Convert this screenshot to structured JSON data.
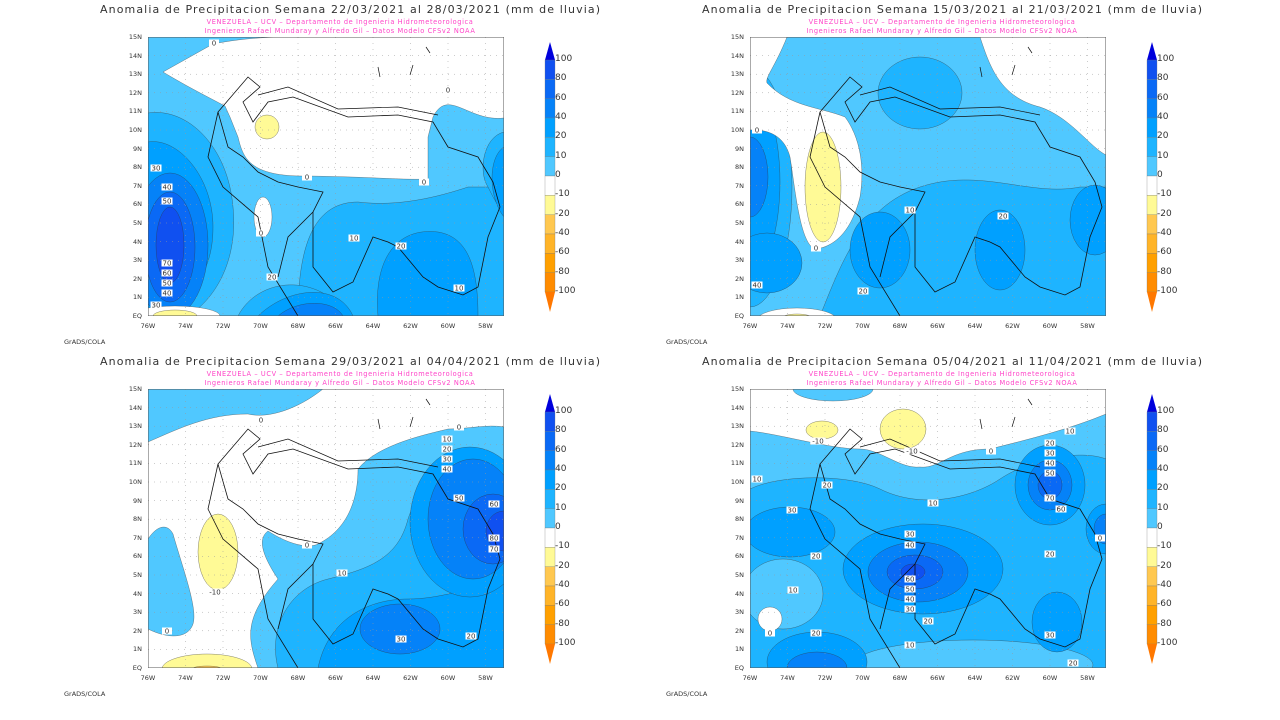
{
  "common": {
    "subtitle_line1": "VENEZUELA – UCV – Departamento de Ingenieria Hidrometeorologica",
    "subtitle_line2": "Ingenieros Rafael Mundaray y Alfredo Gil – Datos Modelo CFSv2 NOAA",
    "credit": "GrADS/COLA",
    "lat_labels": [
      "EQ",
      "1N",
      "2N",
      "3N",
      "4N",
      "5N",
      "6N",
      "7N",
      "8N",
      "9N",
      "10N",
      "11N",
      "12N",
      "13N",
      "14N",
      "15N"
    ],
    "lon_labels": [
      "76W",
      "74W",
      "72W",
      "70W",
      "68W",
      "66W",
      "64W",
      "62W",
      "60W",
      "58W"
    ],
    "colorbar_labels": [
      "100",
      "80",
      "60",
      "40",
      "20",
      "10",
      "0",
      "-10",
      "-20",
      "-40",
      "-60",
      "-80",
      "-100"
    ],
    "colorbar_colors": [
      "#1050f0",
      "#0a69f5",
      "#0582f8",
      "#00a0ff",
      "#1eb4ff",
      "#50c8ff",
      "#ffffff",
      "#fffa96",
      "#ffc850",
      "#ffb428",
      "#ffa000",
      "#ff8c00"
    ],
    "colorbar_max_color": "#0000dc",
    "colorbar_min_color": "#ff7800"
  },
  "panels": [
    {
      "title": "Anomalia de Precipitacion Semana 22/03/2021 al 28/03/2021 (mm de lluvia)",
      "contour_labels": [
        "0",
        "0",
        "0",
        "0",
        "0",
        "30",
        "40",
        "50",
        "10",
        "20",
        "20",
        "70",
        "60",
        "50",
        "40",
        "30",
        "10"
      ]
    },
    {
      "title": "Anomalia de Precipitacion Semana 15/03/2021 al 21/03/2021 (mm de lluvia)",
      "contour_labels": [
        "0",
        "0",
        "10",
        "20",
        "40",
        "20"
      ]
    },
    {
      "title": "Anomalia de Precipitacion Semana 29/03/2021 al 04/04/2021 (mm de lluvia)",
      "contour_labels": [
        "0",
        "0",
        "0",
        "0",
        "-10",
        "10",
        "20",
        "30",
        "40",
        "50",
        "60",
        "80",
        "70",
        "10",
        "30",
        "20"
      ]
    },
    {
      "title": "Anomalia de Precipitacion Semana 05/04/2021 al 11/04/2021 (mm de lluvia)",
      "contour_labels": [
        "-10",
        "-10",
        "0",
        "0",
        "10",
        "20",
        "30",
        "40",
        "50",
        "70",
        "60",
        "10",
        "20",
        "30",
        "10",
        "30",
        "40",
        "20",
        "20",
        "60",
        "50",
        "40",
        "30",
        "20",
        "10",
        "20",
        "10",
        "30",
        "20",
        "0"
      ]
    }
  ]
}
